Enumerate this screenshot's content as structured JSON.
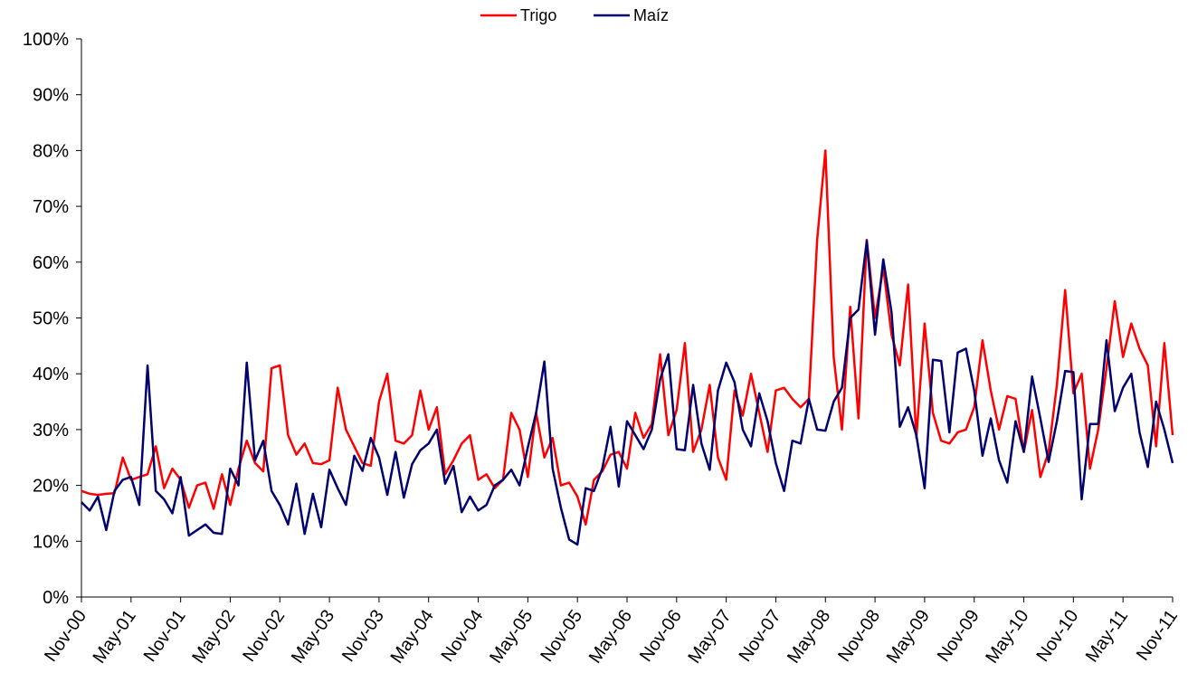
{
  "chart_data": {
    "type": "line",
    "categories": [
      "Nov-00",
      null,
      null,
      null,
      null,
      null,
      "May-01",
      null,
      null,
      null,
      null,
      null,
      "Nov-01",
      null,
      null,
      null,
      null,
      null,
      "May-02",
      null,
      null,
      null,
      null,
      null,
      "Nov-02",
      null,
      null,
      null,
      null,
      null,
      "May-03",
      null,
      null,
      null,
      null,
      null,
      "Nov-03",
      null,
      null,
      null,
      null,
      null,
      "May-04",
      null,
      null,
      null,
      null,
      null,
      "Nov-04",
      null,
      null,
      null,
      null,
      null,
      "May-05",
      null,
      null,
      null,
      null,
      null,
      "Nov-05",
      null,
      null,
      null,
      null,
      null,
      "May-06",
      null,
      null,
      null,
      null,
      null,
      "Nov-06",
      null,
      null,
      null,
      null,
      null,
      "May-07",
      null,
      null,
      null,
      null,
      null,
      "Nov-07",
      null,
      null,
      null,
      null,
      null,
      "May-08",
      null,
      null,
      null,
      null,
      null,
      "Nov-08",
      null,
      null,
      null,
      null,
      null,
      "May-09",
      null,
      null,
      null,
      null,
      null,
      "Nov-09",
      null,
      null,
      null,
      null,
      null,
      "May-10",
      null,
      null,
      null,
      null,
      null,
      "Nov-10",
      null,
      null,
      null,
      null,
      null,
      "May-11",
      null,
      null,
      null,
      null,
      null,
      "Nov-11"
    ],
    "series": [
      {
        "name": "Trigo",
        "color": "#ff0000",
        "values": [
          19,
          18.5,
          18.3,
          18.5,
          18.6,
          25,
          21,
          21.5,
          22,
          27,
          19.5,
          23,
          21,
          16,
          20,
          20.5,
          15.8,
          22,
          16.5,
          23,
          28,
          24,
          22.5,
          41,
          41.5,
          29,
          25.5,
          27.5,
          24,
          23.8,
          24.5,
          37.5,
          30,
          27,
          24,
          23.5,
          35,
          40,
          28,
          27.5,
          29,
          37,
          30,
          34,
          22,
          24.5,
          27.5,
          29,
          21,
          22,
          19.5,
          21,
          33,
          30,
          21.5,
          33,
          25,
          28.5,
          20,
          20.5,
          18,
          13,
          21,
          22.5,
          25.5,
          26,
          23,
          33,
          28.5,
          31,
          43.5,
          29,
          33.5,
          45.5,
          26,
          30,
          38,
          25,
          21,
          37,
          32.5,
          40,
          33,
          26,
          37,
          37.5,
          35.5,
          34,
          35.5,
          64,
          80,
          43,
          30,
          52,
          32,
          64,
          50,
          59,
          47,
          41.5,
          56,
          28.5,
          49,
          33,
          28,
          27.5,
          29.5,
          30,
          34,
          46,
          37,
          30,
          36,
          35.5,
          26,
          33.5,
          21.5,
          26,
          38,
          55,
          36.5,
          40,
          23,
          30,
          41,
          53,
          43,
          49,
          44.5,
          41.5,
          27,
          45.5,
          29
        ]
      },
      {
        "name": "Maíz",
        "color": "#00006e",
        "values": [
          17,
          15.5,
          18,
          12,
          19,
          21,
          21.5,
          16.5,
          41.5,
          19,
          17.5,
          15,
          21.5,
          11,
          12,
          13,
          11.5,
          11.3,
          23,
          20,
          42,
          24.5,
          28,
          19,
          16.5,
          13,
          20.3,
          11.3,
          18.5,
          12.5,
          22.8,
          19.5,
          16.5,
          25.3,
          22.6,
          28.5,
          25,
          18.3,
          26,
          17.8,
          23.8,
          26.3,
          27.5,
          30,
          20.3,
          23.5,
          15.2,
          18,
          15.5,
          16.5,
          20,
          21,
          22.8,
          20,
          26.8,
          33,
          42.2,
          23,
          16,
          10.3,
          9.4,
          19.5,
          19,
          23,
          30.5,
          19.8,
          31.5,
          29,
          26.5,
          30,
          39,
          43.5,
          26.5,
          26.3,
          38,
          27.5,
          22.8,
          37,
          42,
          38.5,
          30,
          27,
          36.5,
          31.5,
          24,
          19,
          28,
          27.5,
          35.5,
          30,
          29.8,
          35,
          37.5,
          50,
          51.5,
          63.8,
          47,
          60.5,
          51,
          30.5,
          34,
          29,
          19.5,
          42.5,
          42.3,
          29.5,
          43.8,
          44.5,
          37,
          25.3,
          32,
          24.5,
          20.5,
          31.5,
          26,
          39.5,
          32,
          24.2,
          31.5,
          40.5,
          40.3,
          17.5,
          31,
          31,
          46,
          33.3,
          37.5,
          40,
          29.5,
          23.3,
          35,
          30,
          24
        ]
      }
    ],
    "ylim": [
      0,
      100
    ],
    "yticks": [
      {
        "value": 0,
        "label": "0%"
      },
      {
        "value": 10,
        "label": "10%"
      },
      {
        "value": 20,
        "label": "20%"
      },
      {
        "value": 30,
        "label": "30%"
      },
      {
        "value": 40,
        "label": "40%"
      },
      {
        "value": 50,
        "label": "50%"
      },
      {
        "value": 60,
        "label": "60%"
      },
      {
        "value": 70,
        "label": "70%"
      },
      {
        "value": 80,
        "label": "80%"
      },
      {
        "value": 90,
        "label": "90%"
      },
      {
        "value": 100,
        "label": "100%"
      }
    ],
    "grid": false,
    "legend": "top"
  }
}
